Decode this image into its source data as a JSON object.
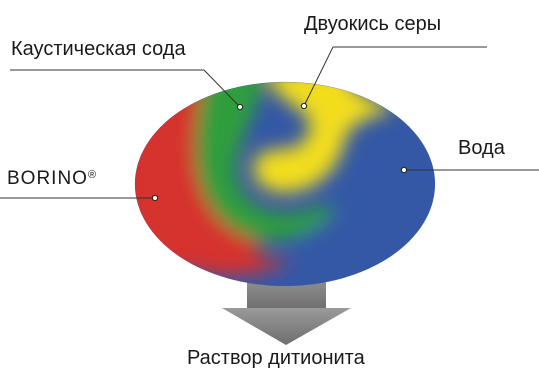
{
  "diagram": {
    "ingredients": {
      "caustic_soda": "Каустическая сода",
      "sulfur_dioxide": "Двуокись серы",
      "water": "Вода",
      "borino": "BORINO",
      "borino_mark": "®"
    },
    "result": "Раствор дитионита",
    "colors": {
      "red": "#d6312f",
      "green": "#2f9e3c",
      "yellow": "#f2dd1b",
      "blue": "#3458a6",
      "arrow": "#7a7a7a",
      "line": "#333333"
    }
  }
}
